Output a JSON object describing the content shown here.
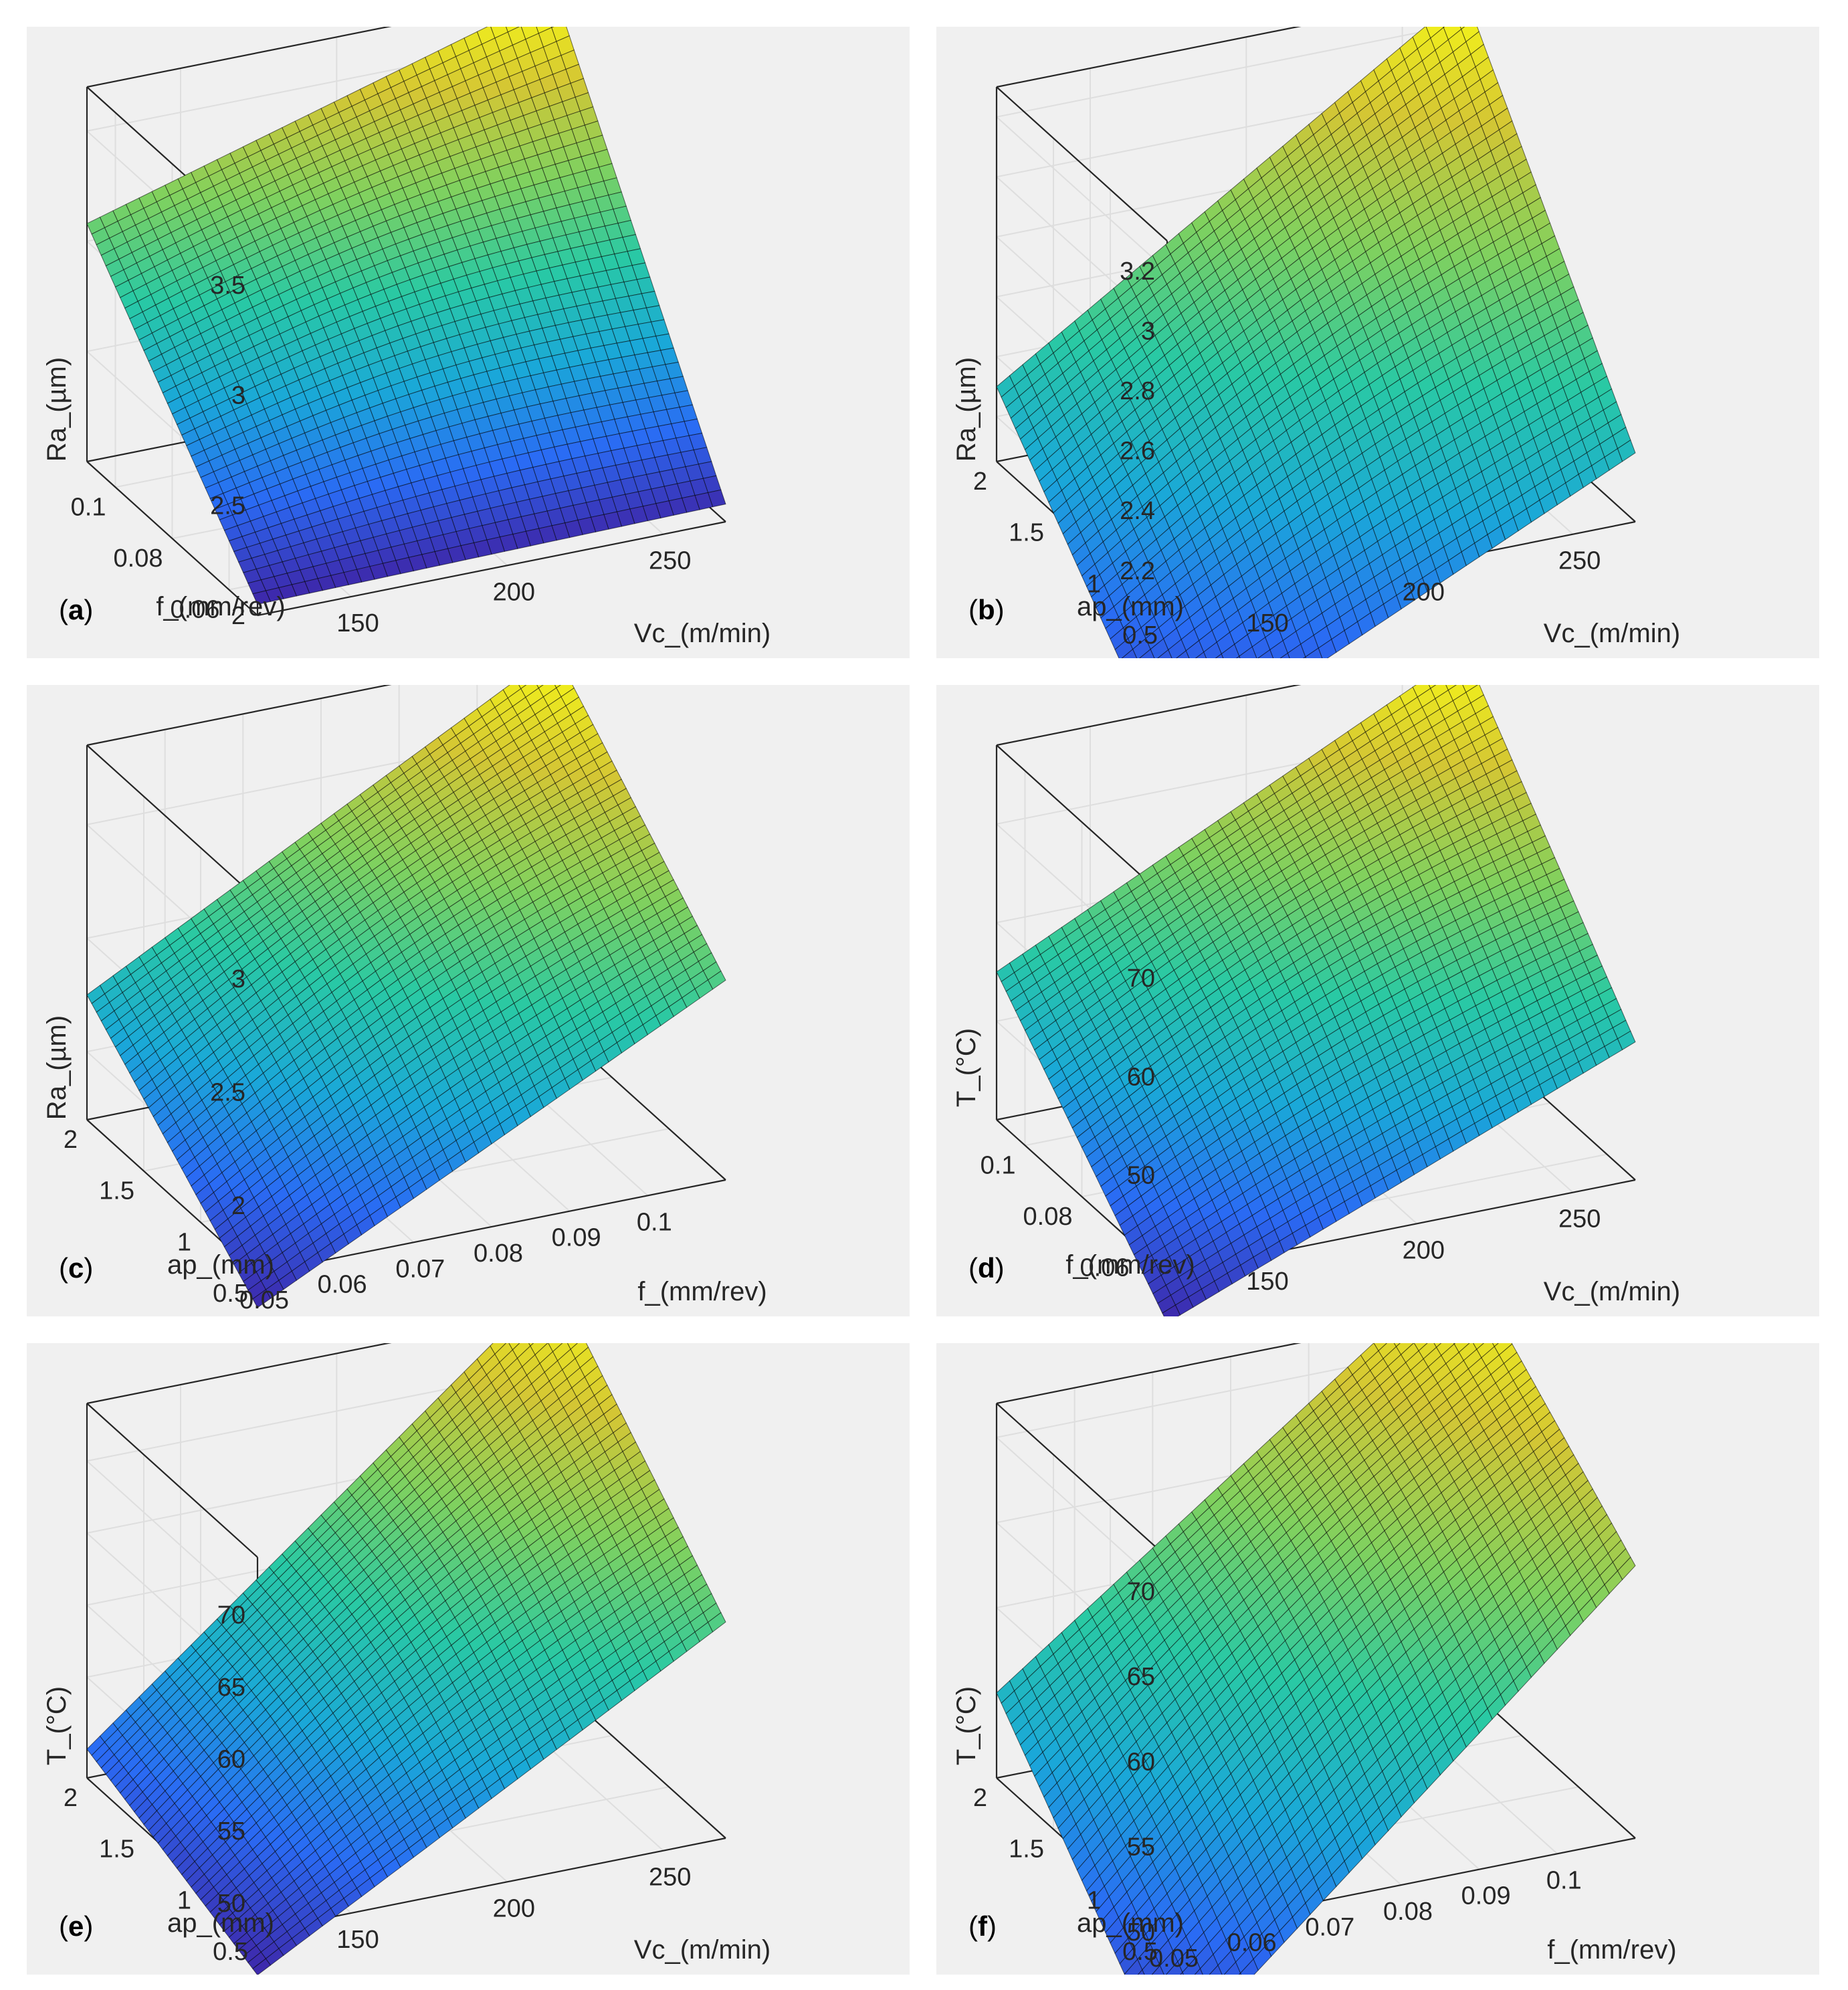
{
  "chart_data": [
    {
      "type": "surface",
      "label_letter": "a",
      "zlabel": "Ra_(µm)",
      "xlabel": "Vc_(m/min)",
      "ylabel": "f_(mm/rev)",
      "x_range": [
        120,
        270
      ],
      "y_range": [
        0.05,
        0.11
      ],
      "z_range": [
        2.0,
        3.7
      ],
      "z_ticks": [
        "2",
        "2.5",
        "3",
        "3.5"
      ],
      "z_tick_values": [
        2.0,
        2.5,
        3.0,
        3.5
      ],
      "x_ticks": [
        "150",
        "200",
        "250"
      ],
      "x_tick_values": [
        150,
        200,
        250
      ],
      "y_ticks": [
        "0.06",
        "0.08",
        "0.1"
      ],
      "y_tick_values": [
        0.06,
        0.08,
        0.1
      ],
      "corner_values": {
        "xmin_ymin": 2.05,
        "xmax_ymin": 2.08,
        "xmin_ymax": 3.08,
        "xmax_ymax": 3.7
      },
      "colormap_range": [
        2.05,
        3.7
      ]
    },
    {
      "type": "surface",
      "label_letter": "b",
      "zlabel": "Ra_(µm)",
      "xlabel": "Vc_(m/min)",
      "ylabel": "ap_(mm)",
      "x_range": [
        120,
        270
      ],
      "y_range": [
        0.5,
        2.0
      ],
      "z_range": [
        2.05,
        3.3
      ],
      "z_ticks": [
        "2.2",
        "2.4",
        "2.6",
        "2.8",
        "3",
        "3.2"
      ],
      "z_tick_values": [
        2.2,
        2.4,
        2.6,
        2.8,
        3.0,
        3.2
      ],
      "x_ticks": [
        "150",
        "200",
        "250"
      ],
      "x_tick_values": [
        150,
        200,
        250
      ],
      "y_ticks": [
        "0.5",
        "1",
        "1.5",
        "2"
      ],
      "y_tick_values": [
        0.5,
        1.0,
        1.5,
        2.0
      ],
      "corner_values": {
        "xmin_ymin": 1.55,
        "xmax_ymin": 2.28,
        "xmin_ymax": 2.3,
        "xmax_ymax": 3.3
      },
      "colormap_range": [
        1.55,
        3.3
      ]
    },
    {
      "type": "surface",
      "label_letter": "c",
      "zlabel": "Ra_(µm)",
      "xlabel": "f_(mm/rev)",
      "ylabel": "ap_(mm)",
      "x_range": [
        0.05,
        0.11
      ],
      "y_range": [
        0.5,
        2.0
      ],
      "z_range": [
        1.7,
        3.35
      ],
      "z_ticks": [
        "2",
        "2.5",
        "3"
      ],
      "z_tick_values": [
        2.0,
        2.5,
        3.0
      ],
      "x_ticks": [
        "0.05",
        "0.06",
        "0.07",
        "0.08",
        "0.09",
        "0.1"
      ],
      "x_tick_values": [
        0.05,
        0.06,
        0.07,
        0.08,
        0.09,
        0.1
      ],
      "y_ticks": [
        "0.5",
        "1",
        "1.5",
        "2"
      ],
      "y_tick_values": [
        0.5,
        1.0,
        1.5,
        2.0
      ],
      "corner_values": {
        "xmin_ymin": 1.55,
        "xmax_ymin": 2.58,
        "xmin_ymax": 2.25,
        "xmax_ymax": 3.35
      },
      "colormap_range": [
        1.55,
        3.35
      ]
    },
    {
      "type": "surface",
      "label_letter": "d",
      "zlabel": "T_(°C)",
      "xlabel": "Vc_(m/min)",
      "ylabel": "f_(mm/rev)",
      "x_range": [
        120,
        270
      ],
      "y_range": [
        0.05,
        0.11
      ],
      "z_range": [
        40,
        78
      ],
      "z_ticks": [
        "50",
        "60",
        "70"
      ],
      "z_tick_values": [
        50,
        60,
        70
      ],
      "x_ticks": [
        "150",
        "200",
        "250"
      ],
      "x_tick_values": [
        150,
        200,
        250
      ],
      "y_ticks": [
        "0.06",
        "0.08",
        "0.1"
      ],
      "y_tick_values": [
        0.06,
        0.08,
        0.1
      ],
      "corner_values": {
        "xmin_ymin": 35,
        "xmax_ymin": 54,
        "xmin_ymax": 55,
        "xmax_ymax": 78
      },
      "colormap_range": [
        35,
        78
      ]
    },
    {
      "type": "surface",
      "label_letter": "e",
      "zlabel": "T_(°C)",
      "xlabel": "Vc_(m/min)",
      "ylabel": "ap_(mm)",
      "x_range": [
        120,
        270
      ],
      "y_range": [
        0.5,
        2.0
      ],
      "z_range": [
        48,
        74
      ],
      "z_ticks": [
        "50",
        "55",
        "60",
        "65",
        "70"
      ],
      "z_tick_values": [
        50,
        55,
        60,
        65,
        70
      ],
      "x_ticks": [
        "150",
        "200",
        "250"
      ],
      "x_tick_values": [
        150,
        200,
        250
      ],
      "y_ticks": [
        "0.5",
        "1",
        "1.5",
        "2"
      ],
      "y_tick_values": [
        0.5,
        1.0,
        1.5,
        2.0
      ],
      "corner_values": {
        "xmin_ymin": 45,
        "xmax_ymin": 63,
        "xmin_ymax": 50,
        "xmax_ymax": 76
      },
      "colormap_range": [
        45,
        76
      ]
    },
    {
      "type": "surface",
      "label_letter": "f",
      "zlabel": "T_(°C)",
      "xlabel": "f_(mm/rev)",
      "ylabel": "ap_(mm)",
      "x_range": [
        0.05,
        0.11
      ],
      "y_range": [
        0.5,
        2.0
      ],
      "z_range": [
        50,
        72
      ],
      "z_ticks": [
        "50",
        "55",
        "60",
        "65",
        "70"
      ],
      "z_tick_values": [
        50,
        55,
        60,
        65,
        70
      ],
      "x_ticks": [
        "0.05",
        "0.06",
        "0.07",
        "0.08",
        "0.09",
        "0.1"
      ],
      "x_tick_values": [
        0.05,
        0.06,
        0.07,
        0.08,
        0.09,
        0.1
      ],
      "y_ticks": [
        "0.5",
        "1",
        "1.5",
        "2"
      ],
      "y_tick_values": [
        0.5,
        1.0,
        1.5,
        2.0
      ],
      "corner_values": {
        "xmin_ymin": 42,
        "xmax_ymin": 66,
        "xmin_ymax": 55,
        "xmax_ymax": 75
      },
      "colormap_range": [
        42,
        75
      ]
    }
  ],
  "colors": {
    "panel_bg": "#f0f0f0",
    "axes_line": "#262626",
    "grid": "#dedede",
    "mesh_line": "#000000",
    "colormap": [
      "#3e26a8",
      "#2a6bf4",
      "#1aa8d8",
      "#29c9a4",
      "#7fd15f",
      "#d4c634",
      "#f9fb15"
    ]
  }
}
